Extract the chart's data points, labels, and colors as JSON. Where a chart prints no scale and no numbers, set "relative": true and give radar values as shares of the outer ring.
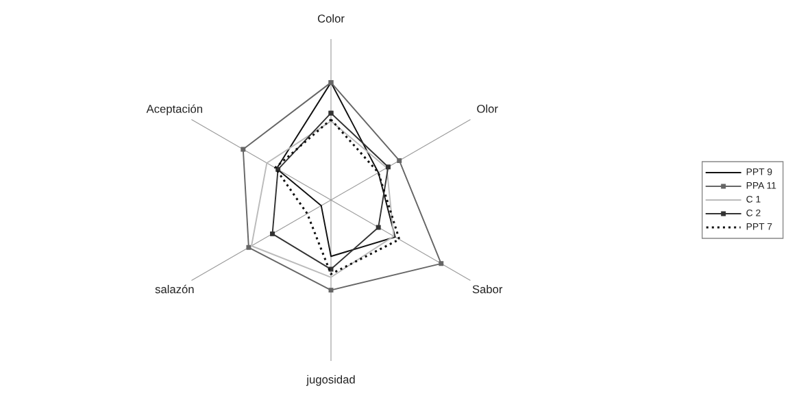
{
  "chart_data": {
    "type": "radar",
    "relative": true,
    "categories": [
      "Color",
      "Olor",
      "Sabor",
      "jugosidad",
      "salazón",
      "Aceptación"
    ],
    "legend": "right",
    "series": [
      {
        "name": "PPT 9",
        "color": "#111111",
        "line_style": "solid",
        "marker": "none",
        "values": [
          0.73,
          0.34,
          0.46,
          0.35,
          0.07,
          0.39
        ]
      },
      {
        "name": "PPA 11",
        "color": "#666666",
        "line_style": "solid",
        "marker": "square",
        "values": [
          0.73,
          0.49,
          0.79,
          0.56,
          0.59,
          0.63
        ]
      },
      {
        "name": "C 1",
        "color": "#bbbbbb",
        "line_style": "solid",
        "marker": "none",
        "values": [
          0.49,
          0.4,
          0.45,
          0.48,
          0.57,
          0.46
        ]
      },
      {
        "name": "C 2",
        "color": "#333333",
        "line_style": "solid",
        "marker": "square",
        "values": [
          0.54,
          0.41,
          0.34,
          0.43,
          0.42,
          0.38
        ]
      },
      {
        "name": "PPT 7",
        "color": "#111111",
        "line_style": "dotted",
        "marker": "none",
        "values": [
          0.5,
          0.34,
          0.49,
          0.46,
          0.17,
          0.4
        ]
      }
    ]
  }
}
